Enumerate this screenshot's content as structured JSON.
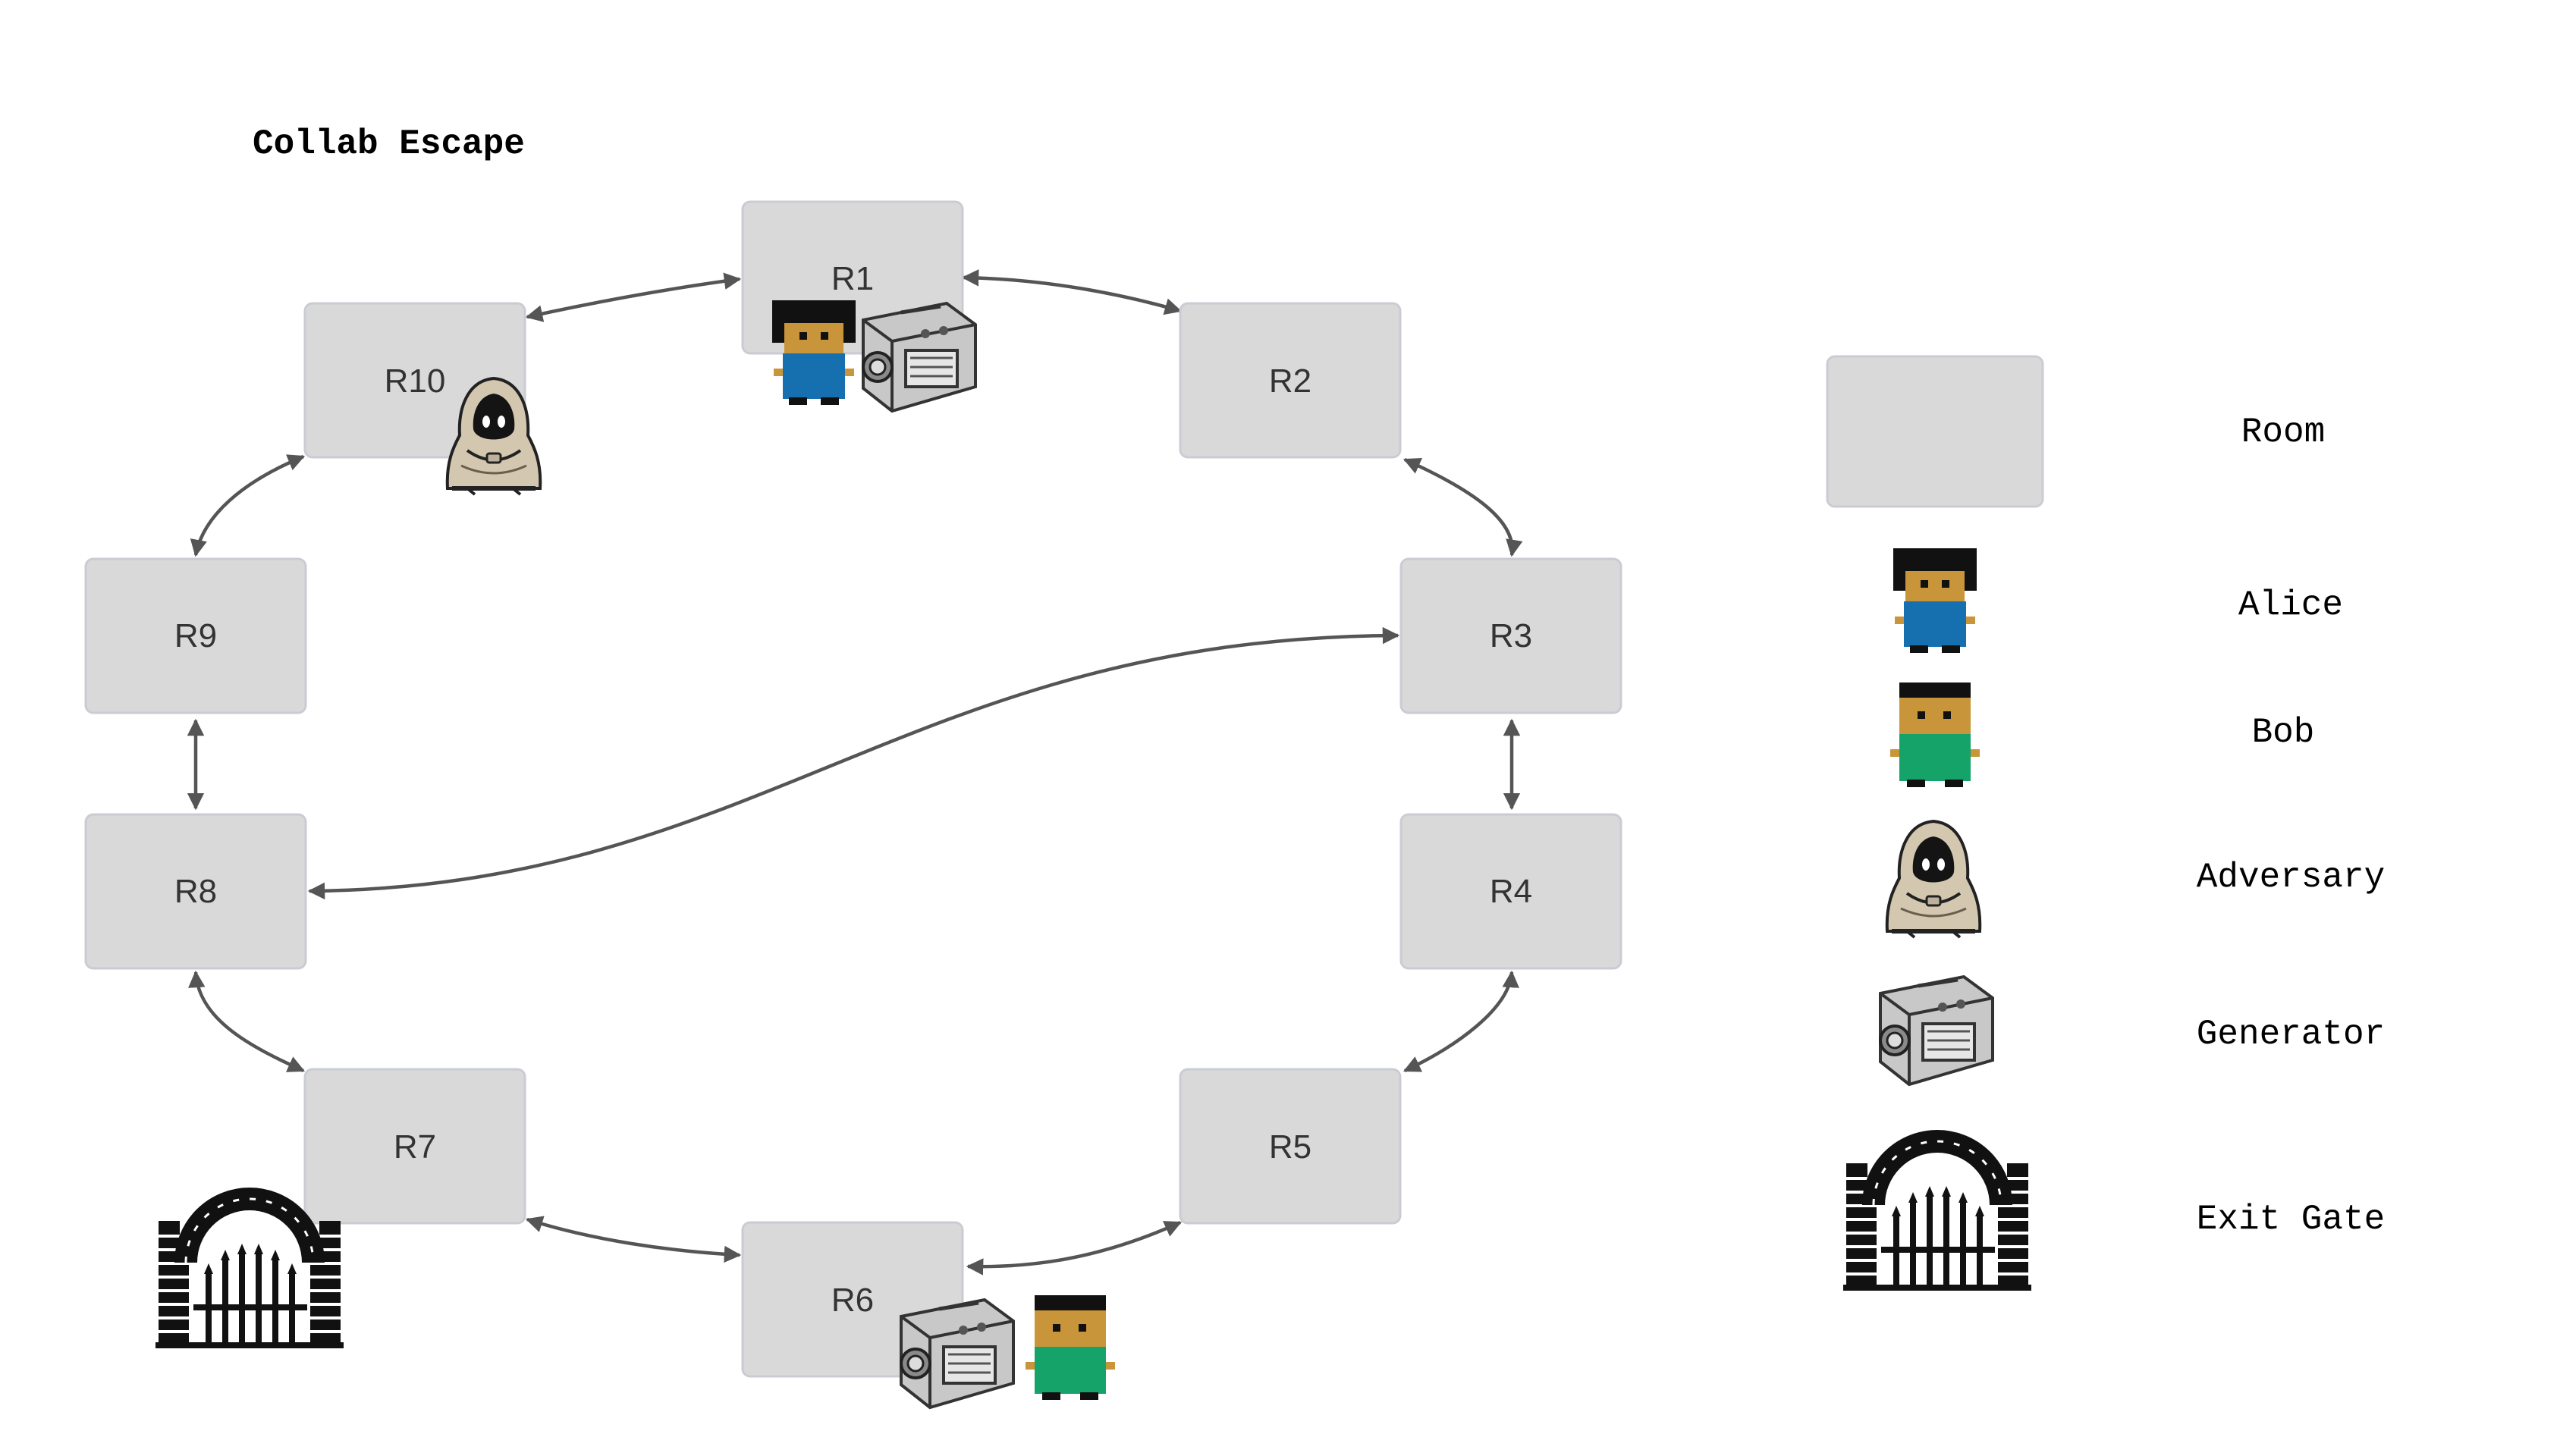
{
  "title": "Collab Escape",
  "colors": {
    "room_fill": "#d9d9d9",
    "room_border": "#c9ccd3",
    "edge": "#555555",
    "alice_shirt": "#1670b0",
    "bob_shirt": "#16a36a",
    "skin": "#c8953a",
    "hair": "#111111"
  },
  "rooms": [
    {
      "id": "R1",
      "label": "R1"
    },
    {
      "id": "R2",
      "label": "R2"
    },
    {
      "id": "R3",
      "label": "R3"
    },
    {
      "id": "R4",
      "label": "R4"
    },
    {
      "id": "R5",
      "label": "R5"
    },
    {
      "id": "R6",
      "label": "R6"
    },
    {
      "id": "R7",
      "label": "R7"
    },
    {
      "id": "R8",
      "label": "R8"
    },
    {
      "id": "R9",
      "label": "R9"
    },
    {
      "id": "R10",
      "label": "R10"
    }
  ],
  "connections": [
    [
      "R1",
      "R2"
    ],
    [
      "R2",
      "R3"
    ],
    [
      "R3",
      "R4"
    ],
    [
      "R4",
      "R5"
    ],
    [
      "R5",
      "R6"
    ],
    [
      "R6",
      "R7"
    ],
    [
      "R7",
      "R8"
    ],
    [
      "R8",
      "R9"
    ],
    [
      "R9",
      "R10"
    ],
    [
      "R10",
      "R1"
    ],
    [
      "R3",
      "R8"
    ]
  ],
  "entities": {
    "alice": "R1",
    "bob": "R6",
    "adversary": "R10",
    "generators": [
      "R1",
      "R6"
    ],
    "exit_gate": "R7"
  },
  "legend": [
    {
      "key": "room",
      "label": "Room",
      "icon": "room-swatch-icon"
    },
    {
      "key": "alice",
      "label": "Alice",
      "icon": "alice-icon"
    },
    {
      "key": "bob",
      "label": "Bob",
      "icon": "bob-icon"
    },
    {
      "key": "adversary",
      "label": "Adversary",
      "icon": "adversary-icon"
    },
    {
      "key": "generator",
      "label": "Generator",
      "icon": "generator-icon"
    },
    {
      "key": "exit_gate",
      "label": "Exit Gate",
      "icon": "exit-gate-icon"
    }
  ]
}
